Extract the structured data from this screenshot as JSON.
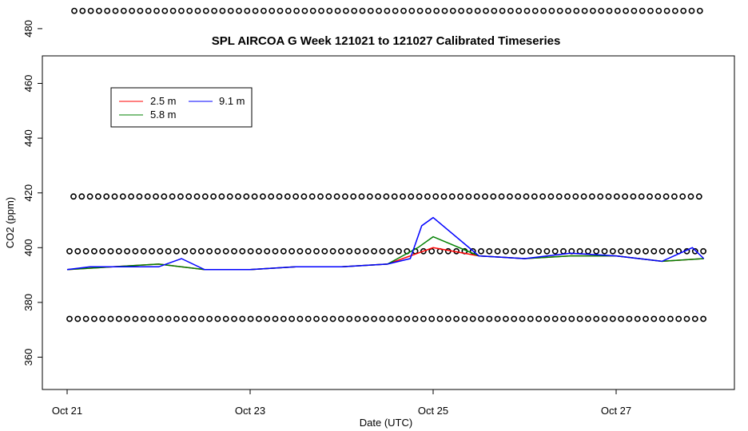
{
  "chart_data": {
    "type": "line",
    "title": "SPL AIRCOA G  Week 121021 to 121027  Calibrated Timeseries",
    "xlabel": "Date (UTC)",
    "ylabel": "CO2 (ppm)",
    "xlim": [
      "2012-10-21T00:00",
      "2012-10-28T00:00"
    ],
    "ylim": [
      350,
      490
    ],
    "x_tick_labels": [
      "Oct 21",
      "Oct 23",
      "Oct 25",
      "Oct 27"
    ],
    "y_tick_values": [
      360,
      380,
      400,
      420,
      440,
      460,
      480
    ],
    "grid": false,
    "legend_position": "top-left",
    "colors": {
      "2.5 m": "#ff0000",
      "5.8 m": "#008000",
      "9.1 m": "#0000ff",
      "reference": "#000000"
    },
    "series": [
      {
        "name": "2.5 m",
        "x": [
          "2012-10-21T00:00",
          "2012-10-21T12:00",
          "2012-10-22T00:00",
          "2012-10-22T12:00",
          "2012-10-23T00:00",
          "2012-10-23T12:00",
          "2012-10-24T00:00",
          "2012-10-24T12:00",
          "2012-10-24T20:00",
          "2012-10-25T00:00",
          "2012-10-25T12:00",
          "2012-10-26T00:00",
          "2012-10-26T12:00",
          "2012-10-27T00:00",
          "2012-10-27T12:00",
          "2012-10-27T23:00"
        ],
        "values": [
          392,
          393,
          394,
          392,
          392,
          393,
          393,
          394,
          398,
          400,
          397,
          396,
          397,
          397,
          395,
          396
        ]
      },
      {
        "name": "5.8 m",
        "x": [
          "2012-10-21T00:00",
          "2012-10-21T12:00",
          "2012-10-22T00:00",
          "2012-10-22T12:00",
          "2012-10-23T00:00",
          "2012-10-23T12:00",
          "2012-10-24T00:00",
          "2012-10-24T12:00",
          "2012-10-24T20:00",
          "2012-10-25T00:00",
          "2012-10-25T12:00",
          "2012-10-26T00:00",
          "2012-10-26T12:00",
          "2012-10-27T00:00",
          "2012-10-27T12:00",
          "2012-10-27T23:00"
        ],
        "values": [
          392,
          393,
          394,
          392,
          392,
          393,
          393,
          394,
          400,
          404,
          397,
          396,
          397,
          397,
          395,
          396
        ]
      },
      {
        "name": "9.1 m",
        "x": [
          "2012-10-21T00:00",
          "2012-10-21T06:00",
          "2012-10-21T12:00",
          "2012-10-21T18:00",
          "2012-10-22T00:00",
          "2012-10-22T06:00",
          "2012-10-22T12:00",
          "2012-10-23T00:00",
          "2012-10-23T12:00",
          "2012-10-24T00:00",
          "2012-10-24T12:00",
          "2012-10-24T18:00",
          "2012-10-24T21:00",
          "2012-10-25T00:00",
          "2012-10-25T12:00",
          "2012-10-26T00:00",
          "2012-10-26T12:00",
          "2012-10-27T00:00",
          "2012-10-27T12:00",
          "2012-10-27T20:00",
          "2012-10-27T23:00"
        ],
        "values": [
          392,
          393,
          393,
          393,
          393,
          396,
          392,
          392,
          393,
          393,
          394,
          396,
          408,
          411,
          397,
          396,
          398,
          397,
          395,
          400,
          396
        ]
      },
      {
        "name": "",
        "type": "scatter",
        "marker": "circle",
        "levels": [
          374,
          398.7,
          418.7,
          486.5
        ]
      }
    ]
  }
}
